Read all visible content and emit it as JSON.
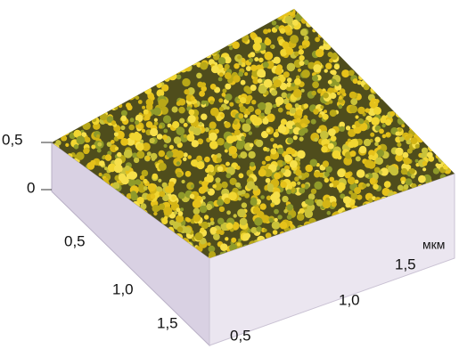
{
  "z_axis": {
    "ticks": [
      "0,5",
      "0"
    ]
  },
  "x_axis": {
    "ticks": [
      "0,5",
      "1,0",
      "1,5"
    ]
  },
  "y_axis": {
    "unit": "мкм",
    "ticks": [
      "1,5",
      "1,0",
      "0,5"
    ]
  }
}
